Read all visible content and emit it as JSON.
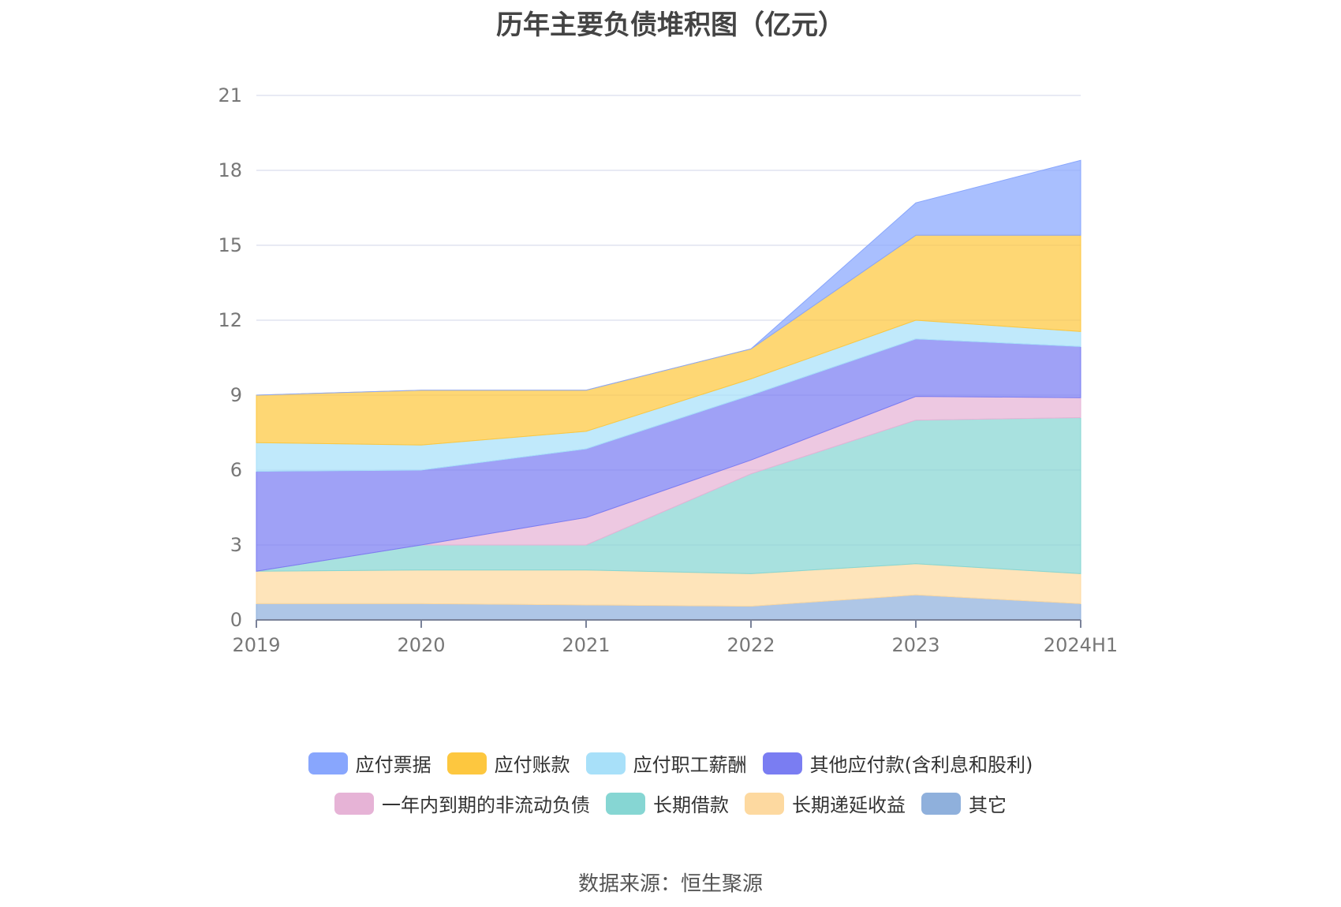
{
  "chart_data": {
    "type": "area",
    "stacked": true,
    "title": "历年主要负债堆积图（亿元）",
    "source": "数据来源：恒生聚源",
    "categories": [
      "2019",
      "2020",
      "2021",
      "2022",
      "2023",
      "2024H1"
    ],
    "yticks": [
      "0",
      "3",
      "6",
      "9",
      "12",
      "15",
      "18",
      "21"
    ],
    "ylim": [
      0,
      21
    ],
    "grid": true,
    "legend_position": "bottom",
    "series": [
      {
        "name": "其它",
        "color": "#8fb0dc",
        "values": [
          0.65,
          0.65,
          0.6,
          0.55,
          1.0,
          0.65
        ]
      },
      {
        "name": "长期递延收益",
        "color": "#fdd9a0",
        "values": [
          1.3,
          1.35,
          1.4,
          1.3,
          1.25,
          1.2
        ]
      },
      {
        "name": "长期借款",
        "color": "#86d6d3",
        "values": [
          0.0,
          1.0,
          1.0,
          4.0,
          5.75,
          6.25
        ]
      },
      {
        "name": "一年内到期的非流动负债",
        "color": "#e6b3d6",
        "values": [
          0.0,
          0.0,
          1.1,
          0.55,
          0.95,
          0.8
        ]
      },
      {
        "name": "其他应付款(含利息和股利)",
        "color": "#7a7df2",
        "values": [
          4.0,
          3.0,
          2.75,
          2.6,
          2.3,
          2.05
        ]
      },
      {
        "name": "应付职工薪酬",
        "color": "#a8e0f9",
        "values": [
          1.15,
          1.0,
          0.7,
          0.65,
          0.75,
          0.6
        ]
      },
      {
        "name": "应付账款",
        "color": "#fdc73f",
        "values": [
          1.9,
          2.2,
          1.65,
          1.2,
          3.4,
          3.85
        ]
      },
      {
        "name": "应付票据",
        "color": "#88a6fd",
        "values": [
          0.0,
          0.0,
          0.0,
          0.0,
          1.3,
          3.0
        ]
      }
    ],
    "legend_order": [
      "应付票据",
      "应付账款",
      "应付职工薪酬",
      "其他应付款(含利息和股利)",
      "一年内到期的非流动负债",
      "长期借款",
      "长期递延收益",
      "其它"
    ]
  }
}
